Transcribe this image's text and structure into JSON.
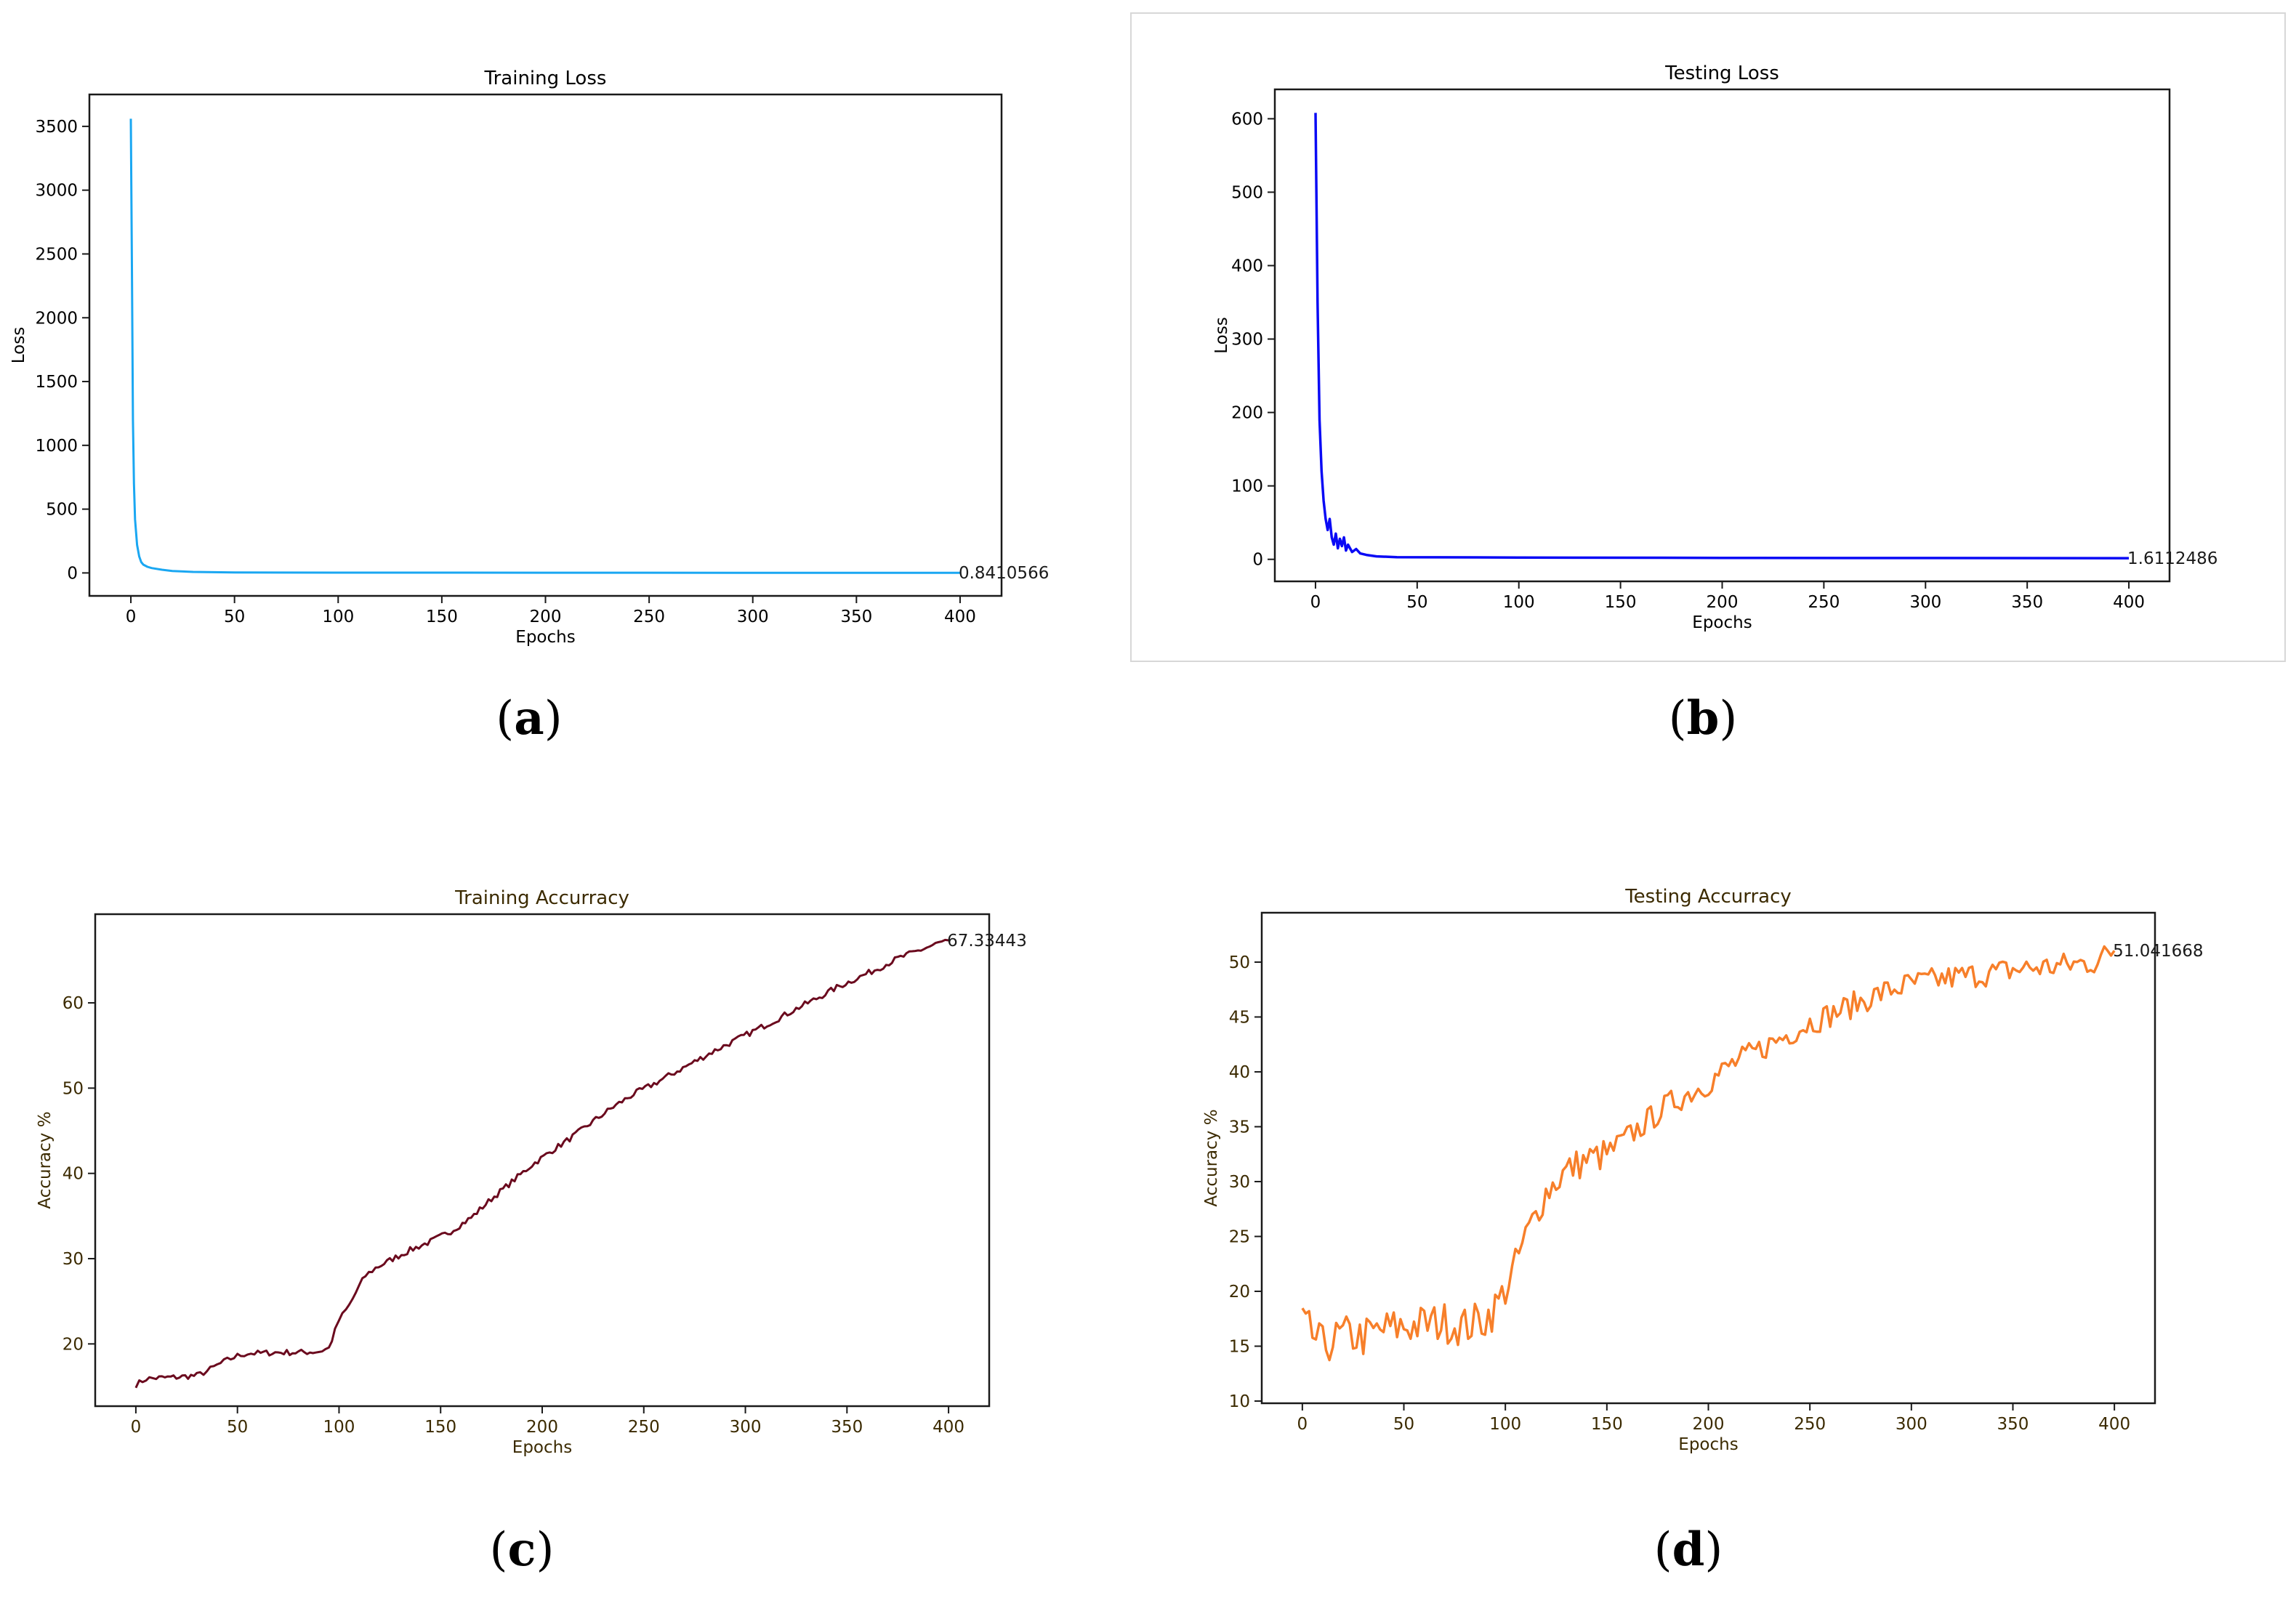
{
  "colors": {
    "training_loss": "#1aa7f2",
    "testing_loss": "#0a0af5",
    "training_accuracy": "#6b0a1e",
    "testing_accuracy": "#f77f2a",
    "accuracy_text": "#3b2a00"
  },
  "chart_data": [
    {
      "id": "a",
      "type": "line",
      "caption": "(a)",
      "title": "Training Loss",
      "xlabel": "Epochs",
      "ylabel": "Loss",
      "xlim": [
        -20,
        420
      ],
      "ylim": [
        -180,
        3750
      ],
      "xticks": [
        0,
        50,
        100,
        150,
        200,
        250,
        300,
        350,
        400
      ],
      "yticks": [
        0,
        500,
        1000,
        1500,
        2000,
        2500,
        3000,
        3500
      ],
      "annotation": {
        "x": 400,
        "y": 0.8410566,
        "text": "0.8410566"
      },
      "grid": false,
      "series": [
        {
          "points": [
            [
              0,
              3560
            ],
            [
              0.5,
              2400
            ],
            [
              1,
              1200
            ],
            [
              1.5,
              700
            ],
            [
              2,
              420
            ],
            [
              3,
              220
            ],
            [
              4,
              130
            ],
            [
              5,
              85
            ],
            [
              6,
              65
            ],
            [
              8,
              48
            ],
            [
              10,
              38
            ],
            [
              15,
              25
            ],
            [
              20,
              15
            ],
            [
              30,
              8
            ],
            [
              50,
              4
            ],
            [
              100,
              2.5
            ],
            [
              200,
              1.5
            ],
            [
              300,
              1.1
            ],
            [
              400,
              0.8410566
            ]
          ]
        }
      ]
    },
    {
      "id": "b",
      "type": "line",
      "caption": "(b)",
      "title": "Testing Loss",
      "xlabel": "Epochs",
      "ylabel": "Loss",
      "xlim": [
        -20,
        420
      ],
      "ylim": [
        -30,
        640
      ],
      "xticks": [
        0,
        50,
        100,
        150,
        200,
        250,
        300,
        350,
        400
      ],
      "yticks": [
        0,
        100,
        200,
        300,
        400,
        500,
        600
      ],
      "annotation": {
        "x": 400,
        "y": 1.6112486,
        "text": "1.6112486"
      },
      "grid": false,
      "series": [
        {
          "points": [
            [
              0,
              608
            ],
            [
              1,
              350
            ],
            [
              2,
              190
            ],
            [
              3,
              120
            ],
            [
              4,
              80
            ],
            [
              5,
              55
            ],
            [
              6,
              40
            ],
            [
              7,
              55
            ],
            [
              8,
              30
            ],
            [
              9,
              20
            ],
            [
              10,
              35
            ],
            [
              11,
              15
            ],
            [
              12,
              28
            ],
            [
              13,
              18
            ],
            [
              14,
              30
            ],
            [
              15,
              12
            ],
            [
              16,
              20
            ],
            [
              18,
              10
            ],
            [
              20,
              14
            ],
            [
              22,
              8
            ],
            [
              25,
              6
            ],
            [
              30,
              4
            ],
            [
              40,
              3
            ],
            [
              60,
              2.8
            ],
            [
              100,
              2.5
            ],
            [
              200,
              2
            ],
            [
              300,
              1.8
            ],
            [
              400,
              1.6112486
            ]
          ]
        }
      ]
    },
    {
      "id": "c",
      "type": "line",
      "caption": "(c)",
      "title": "Training Accurracy",
      "xlabel": "Epochs",
      "ylabel": "Accuracy %",
      "xlim": [
        -20,
        420
      ],
      "ylim": [
        12.7,
        70.4
      ],
      "xticks": [
        0,
        50,
        100,
        150,
        200,
        250,
        300,
        350,
        400
      ],
      "yticks": [
        20,
        30,
        40,
        50,
        60
      ],
      "annotation": {
        "x": 400,
        "y": 67.33443,
        "text": "67.33443"
      },
      "grid": false,
      "series": [
        {
          "points": [
            [
              0,
              15.2
            ],
            [
              5,
              15.9
            ],
            [
              10,
              16.0
            ],
            [
              20,
              16.1
            ],
            [
              30,
              16.3
            ],
            [
              35,
              16.8
            ],
            [
              40,
              17.5
            ],
            [
              45,
              18.1
            ],
            [
              50,
              18.6
            ],
            [
              55,
              18.9
            ],
            [
              60,
              18.9
            ],
            [
              70,
              19.0
            ],
            [
              80,
              19.0
            ],
            [
              90,
              19.1
            ],
            [
              95,
              19.5
            ],
            [
              98,
              21.5
            ],
            [
              100,
              22.8
            ],
            [
              105,
              24.5
            ],
            [
              110,
              26.8
            ],
            [
              113,
              28.0
            ],
            [
              118,
              28.9
            ],
            [
              125,
              29.8
            ],
            [
              135,
              31.0
            ],
            [
              145,
              32.0
            ],
            [
              155,
              33.2
            ],
            [
              165,
              34.8
            ],
            [
              175,
              37.0
            ],
            [
              185,
              39.0
            ],
            [
              195,
              41.0
            ],
            [
              205,
              42.7
            ],
            [
              215,
              44.3
            ],
            [
              225,
              46.1
            ],
            [
              235,
              47.8
            ],
            [
              245,
              49.3
            ],
            [
              255,
              50.5
            ],
            [
              265,
              51.8
            ],
            [
              275,
              53.1
            ],
            [
              285,
              54.4
            ],
            [
              295,
              55.6
            ],
            [
              305,
              56.8
            ],
            [
              315,
              58.0
            ],
            [
              325,
              59.3
            ],
            [
              335,
              60.5
            ],
            [
              345,
              61.8
            ],
            [
              355,
              62.9
            ],
            [
              365,
              64.0
            ],
            [
              375,
              65.2
            ],
            [
              385,
              66.1
            ],
            [
              395,
              67.0
            ],
            [
              400,
              67.33443
            ]
          ]
        }
      ]
    },
    {
      "id": "d",
      "type": "line",
      "caption": "(d)",
      "title": "Testing Accurracy",
      "xlabel": "Epochs",
      "ylabel": "Accuracy %",
      "xlim": [
        -20,
        420
      ],
      "ylim": [
        9.8,
        54.5
      ],
      "xticks": [
        0,
        50,
        100,
        150,
        200,
        250,
        300,
        350,
        400
      ],
      "yticks": [
        10,
        15,
        20,
        25,
        30,
        35,
        40,
        45,
        50
      ],
      "annotation": {
        "x": 400,
        "y": 51.041668,
        "text": "51.041668"
      },
      "grid": false,
      "series": [
        {
          "points": [
            [
              0,
              17.0
            ],
            [
              10,
              15.0
            ],
            [
              20,
              16.0
            ],
            [
              30,
              15.8
            ],
            [
              40,
              16.5
            ],
            [
              50,
              16.8
            ],
            [
              60,
              17.0
            ],
            [
              70,
              17.2
            ],
            [
              80,
              16.8
            ],
            [
              90,
              17.5
            ],
            [
              95,
              18.5
            ],
            [
              100,
              20.0
            ],
            [
              105,
              22.5
            ],
            [
              110,
              25.0
            ],
            [
              115,
              27.0
            ],
            [
              120,
              29.0
            ],
            [
              125,
              30.0
            ],
            [
              130,
              31.0
            ],
            [
              140,
              32.0
            ],
            [
              150,
              32.5
            ],
            [
              160,
              34.0
            ],
            [
              170,
              35.5
            ],
            [
              180,
              37.0
            ],
            [
              190,
              38.0
            ],
            [
              200,
              39.0
            ],
            [
              210,
              40.5
            ],
            [
              220,
              41.5
            ],
            [
              230,
              42.5
            ],
            [
              240,
              43.5
            ],
            [
              250,
              44.5
            ],
            [
              260,
              45.2
            ],
            [
              270,
              46.0
            ],
            [
              280,
              46.8
            ],
            [
              290,
              47.5
            ],
            [
              300,
              48.0
            ],
            [
              310,
              48.3
            ],
            [
              320,
              48.6
            ],
            [
              330,
              48.8
            ],
            [
              340,
              49.0
            ],
            [
              350,
              49.3
            ],
            [
              360,
              49.5
            ],
            [
              370,
              49.6
            ],
            [
              380,
              49.8
            ],
            [
              390,
              50.0
            ],
            [
              400,
              51.041668
            ]
          ]
        }
      ]
    }
  ]
}
